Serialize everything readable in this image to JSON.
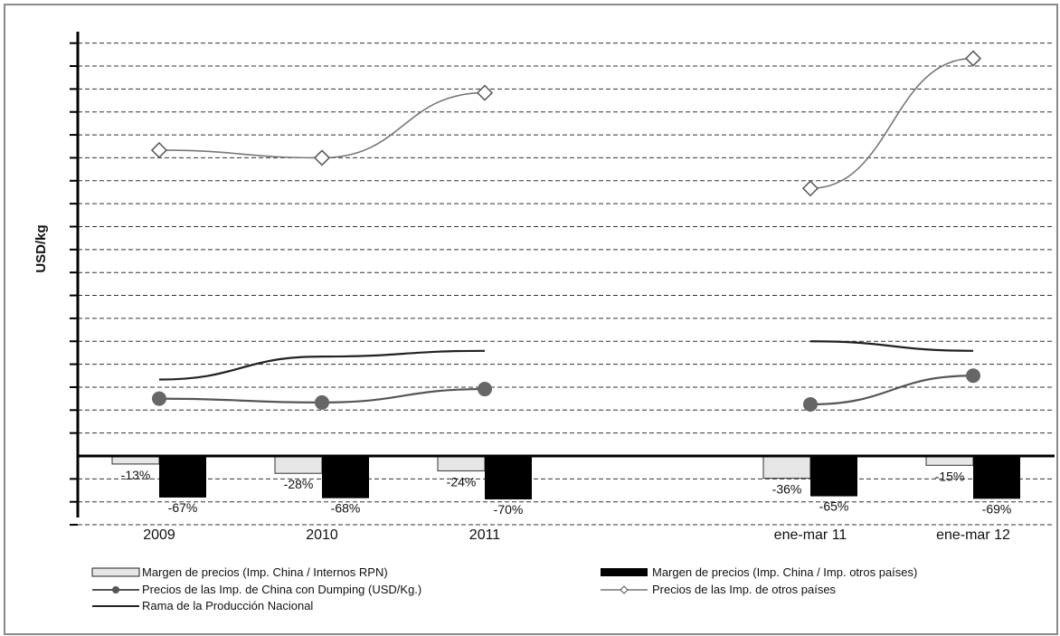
{
  "chart_data": {
    "type": "bar+line",
    "ylabel": "USD/kg",
    "categories": [
      "2009",
      "2010",
      "2011",
      "",
      "ene-mar 11",
      "ene-mar 12"
    ],
    "bar_series": [
      {
        "name": "Margen de precios (Imp. China / Internos RPN)",
        "color": "#e6e6e6",
        "values": [
          -13,
          -28,
          -24,
          null,
          -36,
          -15
        ],
        "labels": [
          "-13%",
          "-28%",
          "-24%",
          "",
          "-36%",
          "-15%"
        ]
      },
      {
        "name": "Margen de precios (Imp. China / Imp. otros países)",
        "color": "#000000",
        "values": [
          -67,
          -68,
          -70,
          null,
          -65,
          -69
        ],
        "labels": [
          "-67%",
          "-68%",
          "-70%",
          "",
          "-65%",
          "-69%"
        ]
      }
    ],
    "line_series": [
      {
        "name": "Precios de las Imp.  de China con Dumping (USD/Kg.)",
        "marker": "circle",
        "color": "#555555",
        "values": [
          0.3,
          0.28,
          0.35,
          null,
          0.27,
          0.42
        ]
      },
      {
        "name": "Precios de las Imp. de otros países",
        "marker": "diamond",
        "color": "#777777",
        "values": [
          1.6,
          1.56,
          1.9,
          null,
          1.4,
          2.08
        ]
      },
      {
        "name": "Rama de la Producción Nacional",
        "marker": "none",
        "color": "#222222",
        "values": [
          0.4,
          0.52,
          0.55,
          null,
          0.6,
          0.55
        ]
      }
    ],
    "y_range": [
      -0.36,
      2.22
    ],
    "grid": "dashed horizontal",
    "legend_position": "bottom"
  },
  "legend": {
    "item1": "Margen de precios (Imp. China / Internos RPN)",
    "item2": "Margen de precios (Imp. China / Imp. otros países)",
    "item3": "Precios de las Imp.  de China con Dumping (USD/Kg.)",
    "item4": "Precios de las Imp. de otros países",
    "item5": "Rama de la Producción Nacional"
  }
}
